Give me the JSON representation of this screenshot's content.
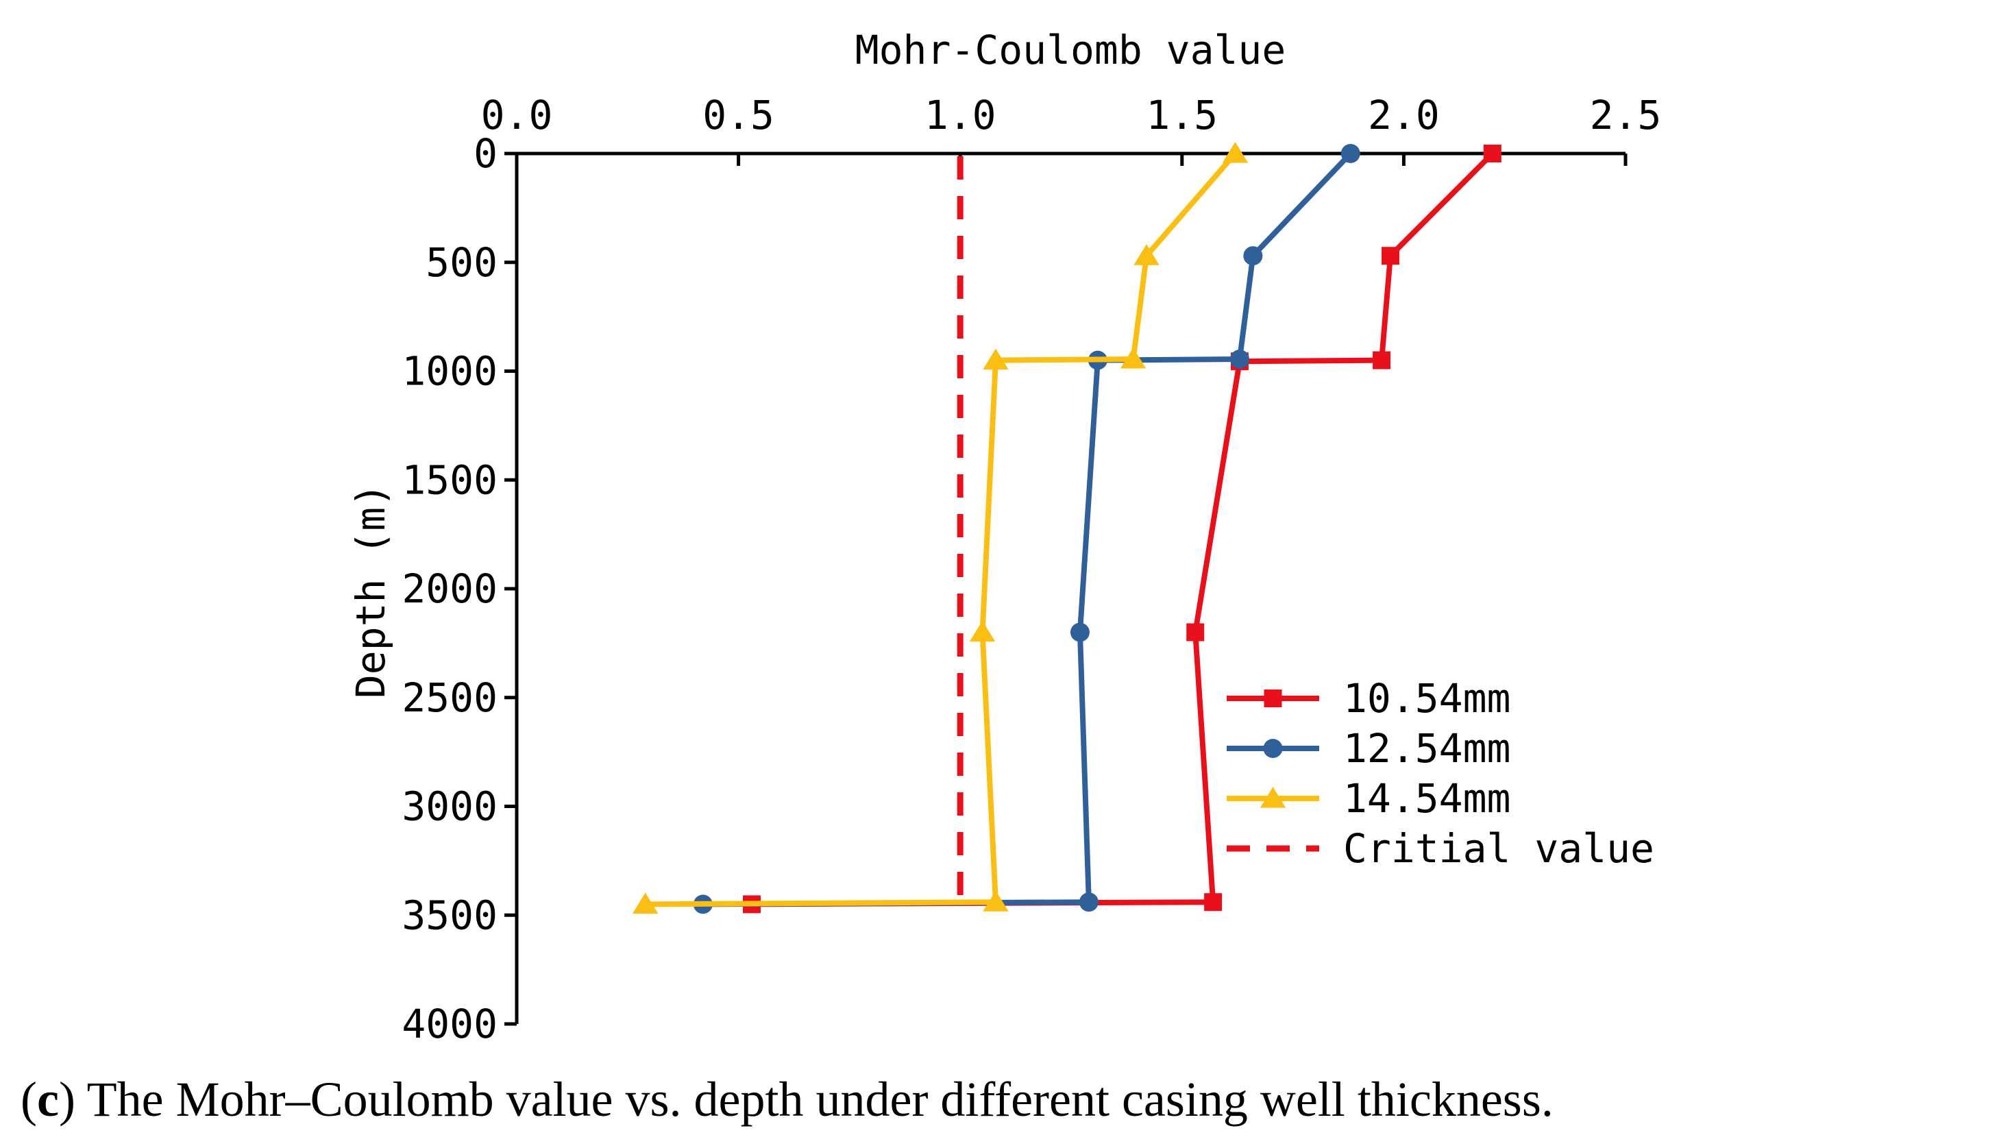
{
  "chart_data": {
    "type": "line",
    "xlabel": "Mohr-Coulomb value",
    "ylabel": "Depth (m)",
    "xlim": [
      0.0,
      2.5
    ],
    "ylim": [
      0,
      4000
    ],
    "x_axis_position": "top",
    "y_axis_inverted": true,
    "xticks": [
      "0.0",
      "0.5",
      "1.0",
      "1.5",
      "2.0",
      "2.5"
    ],
    "xtick_values": [
      0,
      0.5,
      1.0,
      1.5,
      2.0,
      2.5
    ],
    "yticks": [
      "0",
      "500",
      "1000",
      "1500",
      "2000",
      "2500",
      "3000",
      "3500",
      "4000"
    ],
    "ytick_values": [
      0,
      500,
      1000,
      1500,
      2000,
      2500,
      3000,
      3500,
      4000
    ],
    "legend_position": "center-right",
    "series": [
      {
        "name": "10.54mm",
        "color": "#e8101b",
        "marker": "square",
        "points": [
          {
            "x": 2.2,
            "y": 0
          },
          {
            "x": 1.97,
            "y": 470
          },
          {
            "x": 1.95,
            "y": 950
          },
          {
            "x": 1.63,
            "y": 955
          },
          {
            "x": 1.53,
            "y": 2200
          },
          {
            "x": 1.57,
            "y": 3440
          },
          {
            "x": 0.53,
            "y": 3450
          }
        ]
      },
      {
        "name": "12.54mm",
        "color": "#2f6099",
        "marker": "circle",
        "points": [
          {
            "x": 1.88,
            "y": 0
          },
          {
            "x": 1.66,
            "y": 470
          },
          {
            "x": 1.63,
            "y": 945
          },
          {
            "x": 1.31,
            "y": 950
          },
          {
            "x": 1.27,
            "y": 2200
          },
          {
            "x": 1.29,
            "y": 3440
          },
          {
            "x": 0.42,
            "y": 3450
          }
        ]
      },
      {
        "name": "14.54mm",
        "color": "#fbbf14",
        "marker": "triangle",
        "points": [
          {
            "x": 1.62,
            "y": 0
          },
          {
            "x": 1.42,
            "y": 470
          },
          {
            "x": 1.39,
            "y": 945
          },
          {
            "x": 1.08,
            "y": 950
          },
          {
            "x": 1.05,
            "y": 2200
          },
          {
            "x": 1.08,
            "y": 3440
          },
          {
            "x": 0.29,
            "y": 3450
          }
        ]
      }
    ],
    "reference_line": {
      "name": "Critial value",
      "x": 1.0,
      "color": "#e8101b",
      "style": "dashed"
    }
  },
  "caption": {
    "prefix_open": "(",
    "letter": "c",
    "text": ") The Mohr–Coulomb value vs. depth under different casing well thickness."
  }
}
